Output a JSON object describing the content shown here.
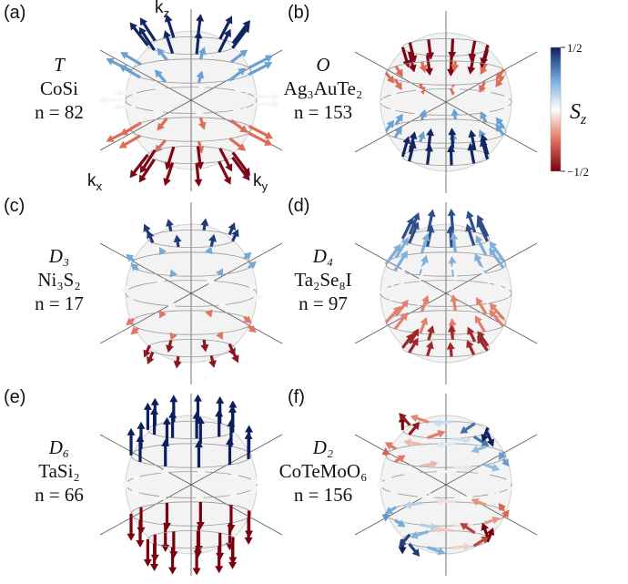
{
  "panels": [
    {
      "label": "(a)",
      "group": "T",
      "material": "CoSi",
      "count": "n = 82"
    },
    {
      "label": "(b)",
      "group": "O",
      "material": "Ag₃AuTe₂",
      "count": "n = 153"
    },
    {
      "label": "(c)",
      "group": "D₃",
      "material": "Ni₃S₂",
      "count": "n = 17"
    },
    {
      "label": "(d)",
      "group": "D₄",
      "material": "Ta₂Se₈I",
      "count": "n = 97"
    },
    {
      "label": "(e)",
      "group": "D₆",
      "material": "TaSi₂",
      "count": "n = 66"
    },
    {
      "label": "(f)",
      "group": "D₂",
      "material": "CoTeMoO₆",
      "count": "n = 156"
    }
  ],
  "axes": [
    {
      "base": "k",
      "sub": "z"
    },
    {
      "base": "k",
      "sub": "x"
    },
    {
      "base": "k",
      "sub": "y"
    }
  ],
  "colorbar": {
    "label": {
      "base": "S",
      "sub": "z"
    },
    "range": [
      -0.5,
      0.5
    ],
    "ticks": [
      {
        "value": 0.5,
        "label": "1/2"
      },
      {
        "value": -0.5,
        "label": "−1/2"
      }
    ]
  }
}
